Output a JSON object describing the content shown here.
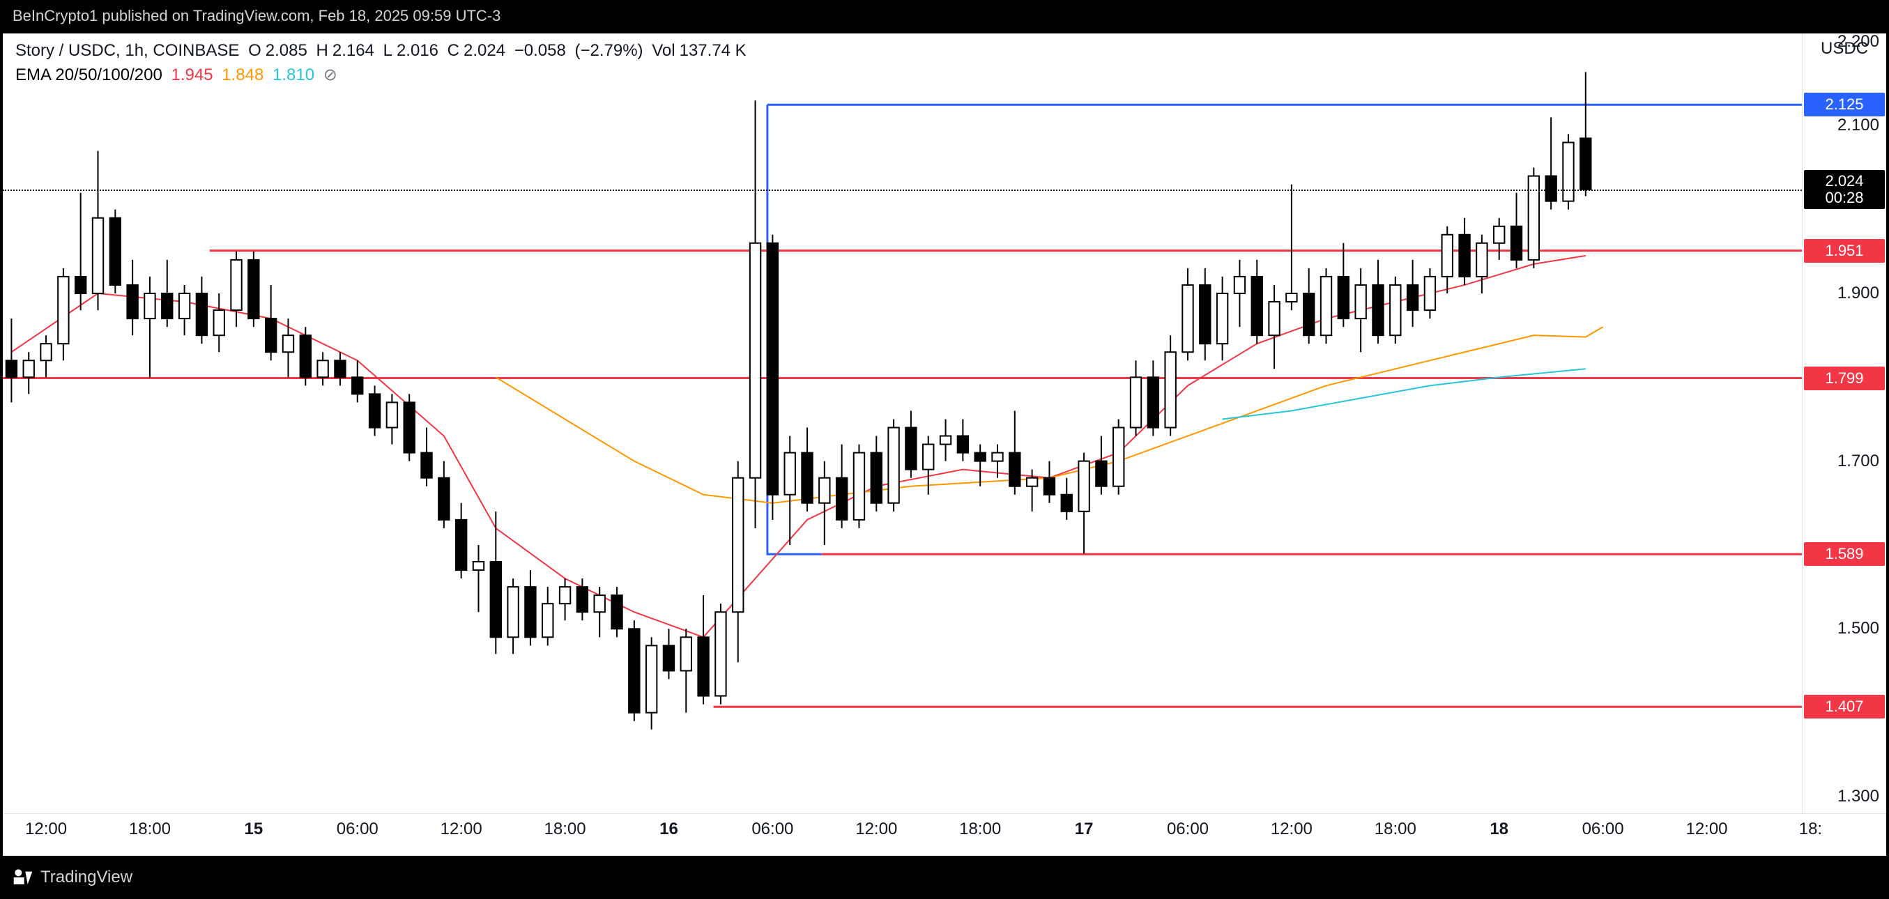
{
  "attribution": "BeInCrypto1 published on TradingView.com, Feb 18, 2025 09:59 UTC-3",
  "header": {
    "symbol": "Story / USDC, 1h, COINBASE",
    "o_label": "O",
    "o": "2.085",
    "h_label": "H",
    "h": "2.164",
    "l_label": "L",
    "l": "2.016",
    "c_label": "C",
    "c": "2.024",
    "change_abs": "−0.058",
    "change_pct": "(−2.79%)",
    "vol_label": "Vol",
    "vol": "137.74 K"
  },
  "ema_line": {
    "label": "EMA 20/50/100/200",
    "v20": "1.945",
    "v50": "1.848",
    "v100": "1.810",
    "v200_symbol": "⊘"
  },
  "quote_currency": "USDC",
  "chart": {
    "type": "candlestick",
    "y_min": 1.28,
    "y_max": 2.21,
    "y_ticks": [
      1.3,
      1.5,
      1.7,
      1.9,
      2.1,
      2.2
    ],
    "y_tick_labels": [
      "1.300",
      "1.500",
      "1.700",
      "1.900",
      "2.100",
      "2.200"
    ],
    "price_line": 2.024,
    "price_tag": {
      "price": "2.024",
      "countdown": "00:28",
      "bg": "#000000",
      "fg": "#ffffff"
    },
    "level_tags": [
      {
        "v": 2.125,
        "label": "2.125",
        "bg": "#2962ff"
      },
      {
        "v": 1.951,
        "label": "1.951",
        "bg": "#f23645"
      },
      {
        "v": 1.799,
        "label": "1.799",
        "bg": "#f23645"
      },
      {
        "v": 1.589,
        "label": "1.589",
        "bg": "#f23645"
      },
      {
        "v": 1.407,
        "label": "1.407",
        "bg": "#f23645"
      }
    ],
    "h_lines": [
      {
        "y": 2.125,
        "x0": 0.425,
        "x1": 1.0,
        "color": "#2962ff",
        "w": 3
      },
      {
        "y": 1.951,
        "x0": 0.115,
        "x1": 1.0,
        "color": "#f23645",
        "w": 3
      },
      {
        "y": 1.799,
        "x0": 0.0,
        "x1": 1.0,
        "color": "#f23645",
        "w": 3
      },
      {
        "y": 1.589,
        "x0": 0.455,
        "x1": 1.0,
        "color": "#f23645",
        "w": 3
      },
      {
        "y": 1.407,
        "x0": 0.395,
        "x1": 1.0,
        "color": "#f23645",
        "w": 3
      }
    ],
    "seg_lines": [
      {
        "y0": 2.125,
        "x0": 0.425,
        "y1": 1.589,
        "x1": 0.455,
        "color": "#2962ff",
        "w": 3,
        "via": [
          [
            0.425,
            2.125
          ],
          [
            0.425,
            1.589
          ],
          [
            0.455,
            1.589
          ]
        ],
        "poly": true
      }
    ],
    "x_ticks": [
      {
        "pos": 0.035,
        "label": "12:00"
      },
      {
        "pos": 0.083,
        "label": "18:00"
      },
      {
        "pos": 0.132,
        "label": "15",
        "bold": true
      },
      {
        "pos": 0.18,
        "label": "06:00"
      },
      {
        "pos": 0.229,
        "label": "12:00"
      },
      {
        "pos": 0.277,
        "label": "18:00"
      },
      {
        "pos": 0.326,
        "label": "16",
        "bold": true
      },
      {
        "pos": 0.374,
        "label": "06:00"
      },
      {
        "pos": 0.423,
        "label": "12:00"
      },
      {
        "pos": 0.472,
        "label": "18:00"
      },
      {
        "pos": 0.52,
        "label": "17",
        "bold": true
      },
      {
        "pos": 0.569,
        "label": "06:00"
      },
      {
        "pos": 0.617,
        "label": "12:00"
      },
      {
        "pos": 0.666,
        "label": "18:00"
      },
      {
        "pos": 0.714,
        "label": "18",
        "bold": true
      },
      {
        "pos": 0.763,
        "label": "06:00"
      },
      {
        "pos": 0.811,
        "label": "12:00"
      },
      {
        "pos": 0.86,
        "label": "18:"
      }
    ],
    "candle_up_fill": "#ffffff",
    "candle_up_border": "#000000",
    "candle_dn_fill": "#000000",
    "candle_dn_border": "#000000",
    "wick_color": "#000000",
    "bg": "#ffffff",
    "candles": [
      {
        "o": 1.82,
        "h": 1.87,
        "l": 1.77,
        "c": 1.8
      },
      {
        "o": 1.8,
        "h": 1.83,
        "l": 1.78,
        "c": 1.82
      },
      {
        "o": 1.82,
        "h": 1.85,
        "l": 1.8,
        "c": 1.84
      },
      {
        "o": 1.84,
        "h": 1.93,
        "l": 1.82,
        "c": 1.92
      },
      {
        "o": 1.92,
        "h": 2.02,
        "l": 1.88,
        "c": 1.9
      },
      {
        "o": 1.9,
        "h": 2.07,
        "l": 1.88,
        "c": 1.99
      },
      {
        "o": 1.99,
        "h": 2.0,
        "l": 1.9,
        "c": 1.91
      },
      {
        "o": 1.91,
        "h": 1.94,
        "l": 1.85,
        "c": 1.87
      },
      {
        "o": 1.87,
        "h": 1.92,
        "l": 1.8,
        "c": 1.9
      },
      {
        "o": 1.9,
        "h": 1.94,
        "l": 1.86,
        "c": 1.87
      },
      {
        "o": 1.87,
        "h": 1.91,
        "l": 1.85,
        "c": 1.9
      },
      {
        "o": 1.9,
        "h": 1.92,
        "l": 1.84,
        "c": 1.85
      },
      {
        "o": 1.85,
        "h": 1.9,
        "l": 1.83,
        "c": 1.88
      },
      {
        "o": 1.88,
        "h": 1.95,
        "l": 1.86,
        "c": 1.94
      },
      {
        "o": 1.94,
        "h": 1.95,
        "l": 1.86,
        "c": 1.87
      },
      {
        "o": 1.87,
        "h": 1.91,
        "l": 1.82,
        "c": 1.83
      },
      {
        "o": 1.83,
        "h": 1.87,
        "l": 1.8,
        "c": 1.85
      },
      {
        "o": 1.85,
        "h": 1.86,
        "l": 1.79,
        "c": 1.8
      },
      {
        "o": 1.8,
        "h": 1.83,
        "l": 1.79,
        "c": 1.82
      },
      {
        "o": 1.82,
        "h": 1.83,
        "l": 1.79,
        "c": 1.8
      },
      {
        "o": 1.8,
        "h": 1.82,
        "l": 1.77,
        "c": 1.78
      },
      {
        "o": 1.78,
        "h": 1.79,
        "l": 1.73,
        "c": 1.74
      },
      {
        "o": 1.74,
        "h": 1.78,
        "l": 1.72,
        "c": 1.77
      },
      {
        "o": 1.77,
        "h": 1.78,
        "l": 1.7,
        "c": 1.71
      },
      {
        "o": 1.71,
        "h": 1.74,
        "l": 1.67,
        "c": 1.68
      },
      {
        "o": 1.68,
        "h": 1.7,
        "l": 1.62,
        "c": 1.63
      },
      {
        "o": 1.63,
        "h": 1.65,
        "l": 1.56,
        "c": 1.57
      },
      {
        "o": 1.57,
        "h": 1.6,
        "l": 1.52,
        "c": 1.58
      },
      {
        "o": 1.58,
        "h": 1.64,
        "l": 1.47,
        "c": 1.49
      },
      {
        "o": 1.49,
        "h": 1.56,
        "l": 1.47,
        "c": 1.55
      },
      {
        "o": 1.55,
        "h": 1.57,
        "l": 1.48,
        "c": 1.49
      },
      {
        "o": 1.49,
        "h": 1.55,
        "l": 1.48,
        "c": 1.53
      },
      {
        "o": 1.53,
        "h": 1.56,
        "l": 1.51,
        "c": 1.55
      },
      {
        "o": 1.55,
        "h": 1.56,
        "l": 1.51,
        "c": 1.52
      },
      {
        "o": 1.52,
        "h": 1.55,
        "l": 1.49,
        "c": 1.54
      },
      {
        "o": 1.54,
        "h": 1.55,
        "l": 1.49,
        "c": 1.5
      },
      {
        "o": 1.5,
        "h": 1.51,
        "l": 1.39,
        "c": 1.4
      },
      {
        "o": 1.4,
        "h": 1.49,
        "l": 1.38,
        "c": 1.48
      },
      {
        "o": 1.48,
        "h": 1.5,
        "l": 1.44,
        "c": 1.45
      },
      {
        "o": 1.45,
        "h": 1.5,
        "l": 1.4,
        "c": 1.49
      },
      {
        "o": 1.49,
        "h": 1.54,
        "l": 1.41,
        "c": 1.42
      },
      {
        "o": 1.42,
        "h": 1.53,
        "l": 1.41,
        "c": 1.52
      },
      {
        "o": 1.52,
        "h": 1.7,
        "l": 1.46,
        "c": 1.68
      },
      {
        "o": 1.68,
        "h": 2.13,
        "l": 1.62,
        "c": 1.96
      },
      {
        "o": 1.96,
        "h": 1.97,
        "l": 1.63,
        "c": 1.66
      },
      {
        "o": 1.66,
        "h": 1.73,
        "l": 1.6,
        "c": 1.71
      },
      {
        "o": 1.71,
        "h": 1.74,
        "l": 1.64,
        "c": 1.65
      },
      {
        "o": 1.65,
        "h": 1.7,
        "l": 1.6,
        "c": 1.68
      },
      {
        "o": 1.68,
        "h": 1.72,
        "l": 1.62,
        "c": 1.63
      },
      {
        "o": 1.63,
        "h": 1.72,
        "l": 1.62,
        "c": 1.71
      },
      {
        "o": 1.71,
        "h": 1.73,
        "l": 1.64,
        "c": 1.65
      },
      {
        "o": 1.65,
        "h": 1.75,
        "l": 1.64,
        "c": 1.74
      },
      {
        "o": 1.74,
        "h": 1.76,
        "l": 1.68,
        "c": 1.69
      },
      {
        "o": 1.69,
        "h": 1.73,
        "l": 1.66,
        "c": 1.72
      },
      {
        "o": 1.72,
        "h": 1.75,
        "l": 1.7,
        "c": 1.73
      },
      {
        "o": 1.73,
        "h": 1.75,
        "l": 1.7,
        "c": 1.71
      },
      {
        "o": 1.71,
        "h": 1.72,
        "l": 1.67,
        "c": 1.7
      },
      {
        "o": 1.7,
        "h": 1.72,
        "l": 1.68,
        "c": 1.71
      },
      {
        "o": 1.71,
        "h": 1.76,
        "l": 1.66,
        "c": 1.67
      },
      {
        "o": 1.67,
        "h": 1.69,
        "l": 1.64,
        "c": 1.68
      },
      {
        "o": 1.68,
        "h": 1.7,
        "l": 1.65,
        "c": 1.66
      },
      {
        "o": 1.66,
        "h": 1.68,
        "l": 1.63,
        "c": 1.64
      },
      {
        "o": 1.64,
        "h": 1.71,
        "l": 1.59,
        "c": 1.7
      },
      {
        "o": 1.7,
        "h": 1.73,
        "l": 1.66,
        "c": 1.67
      },
      {
        "o": 1.67,
        "h": 1.75,
        "l": 1.66,
        "c": 1.74
      },
      {
        "o": 1.74,
        "h": 1.82,
        "l": 1.73,
        "c": 1.8
      },
      {
        "o": 1.8,
        "h": 1.82,
        "l": 1.73,
        "c": 1.74
      },
      {
        "o": 1.74,
        "h": 1.85,
        "l": 1.73,
        "c": 1.83
      },
      {
        "o": 1.83,
        "h": 1.93,
        "l": 1.82,
        "c": 1.91
      },
      {
        "o": 1.91,
        "h": 1.93,
        "l": 1.82,
        "c": 1.84
      },
      {
        "o": 1.84,
        "h": 1.92,
        "l": 1.82,
        "c": 1.9
      },
      {
        "o": 1.9,
        "h": 1.94,
        "l": 1.86,
        "c": 1.92
      },
      {
        "o": 1.92,
        "h": 1.94,
        "l": 1.84,
        "c": 1.85
      },
      {
        "o": 1.85,
        "h": 1.91,
        "l": 1.81,
        "c": 1.89
      },
      {
        "o": 1.89,
        "h": 2.03,
        "l": 1.88,
        "c": 1.9
      },
      {
        "o": 1.9,
        "h": 1.93,
        "l": 1.84,
        "c": 1.85
      },
      {
        "o": 1.85,
        "h": 1.93,
        "l": 1.84,
        "c": 1.92
      },
      {
        "o": 1.92,
        "h": 1.96,
        "l": 1.86,
        "c": 1.87
      },
      {
        "o": 1.87,
        "h": 1.93,
        "l": 1.83,
        "c": 1.91
      },
      {
        "o": 1.91,
        "h": 1.94,
        "l": 1.84,
        "c": 1.85
      },
      {
        "o": 1.85,
        "h": 1.92,
        "l": 1.84,
        "c": 1.91
      },
      {
        "o": 1.91,
        "h": 1.94,
        "l": 1.86,
        "c": 1.88
      },
      {
        "o": 1.88,
        "h": 1.93,
        "l": 1.87,
        "c": 1.92
      },
      {
        "o": 1.92,
        "h": 1.98,
        "l": 1.9,
        "c": 1.97
      },
      {
        "o": 1.97,
        "h": 1.99,
        "l": 1.91,
        "c": 1.92
      },
      {
        "o": 1.92,
        "h": 1.97,
        "l": 1.9,
        "c": 1.96
      },
      {
        "o": 1.96,
        "h": 1.99,
        "l": 1.94,
        "c": 1.98
      },
      {
        "o": 1.98,
        "h": 2.02,
        "l": 1.93,
        "c": 1.94
      },
      {
        "o": 1.94,
        "h": 2.05,
        "l": 1.93,
        "c": 2.04
      },
      {
        "o": 2.04,
        "h": 2.11,
        "l": 2.0,
        "c": 2.01
      },
      {
        "o": 2.01,
        "h": 2.09,
        "l": 2.0,
        "c": 2.08
      },
      {
        "o": 2.085,
        "h": 2.164,
        "l": 2.016,
        "c": 2.024
      }
    ],
    "ema20_pts": [
      [
        0,
        1.83
      ],
      [
        5,
        1.9
      ],
      [
        10,
        1.89
      ],
      [
        15,
        1.87
      ],
      [
        20,
        1.82
      ],
      [
        25,
        1.73
      ],
      [
        28,
        1.62
      ],
      [
        32,
        1.56
      ],
      [
        36,
        1.52
      ],
      [
        40,
        1.49
      ],
      [
        43,
        1.56
      ],
      [
        46,
        1.63
      ],
      [
        50,
        1.67
      ],
      [
        55,
        1.69
      ],
      [
        60,
        1.68
      ],
      [
        64,
        1.71
      ],
      [
        68,
        1.79
      ],
      [
        72,
        1.84
      ],
      [
        76,
        1.87
      ],
      [
        80,
        1.89
      ],
      [
        84,
        1.91
      ],
      [
        88,
        1.935
      ],
      [
        91,
        1.945
      ]
    ],
    "ema50_pts": [
      [
        28,
        1.8
      ],
      [
        32,
        1.75
      ],
      [
        36,
        1.7
      ],
      [
        40,
        1.66
      ],
      [
        44,
        1.65
      ],
      [
        48,
        1.66
      ],
      [
        52,
        1.67
      ],
      [
        56,
        1.675
      ],
      [
        60,
        1.68
      ],
      [
        64,
        1.7
      ],
      [
        68,
        1.73
      ],
      [
        72,
        1.76
      ],
      [
        76,
        1.79
      ],
      [
        80,
        1.81
      ],
      [
        84,
        1.83
      ],
      [
        88,
        1.85
      ],
      [
        91,
        1.848
      ],
      [
        92,
        1.86
      ]
    ],
    "ema100_pts": [
      [
        70,
        1.75
      ],
      [
        74,
        1.76
      ],
      [
        78,
        1.775
      ],
      [
        82,
        1.79
      ],
      [
        86,
        1.8
      ],
      [
        91,
        1.81
      ]
    ],
    "ema20_color": "#f23645",
    "ema50_color": "#ff9800",
    "ema100_color": "#26c6da"
  },
  "footer": {
    "brand": "TradingView"
  }
}
